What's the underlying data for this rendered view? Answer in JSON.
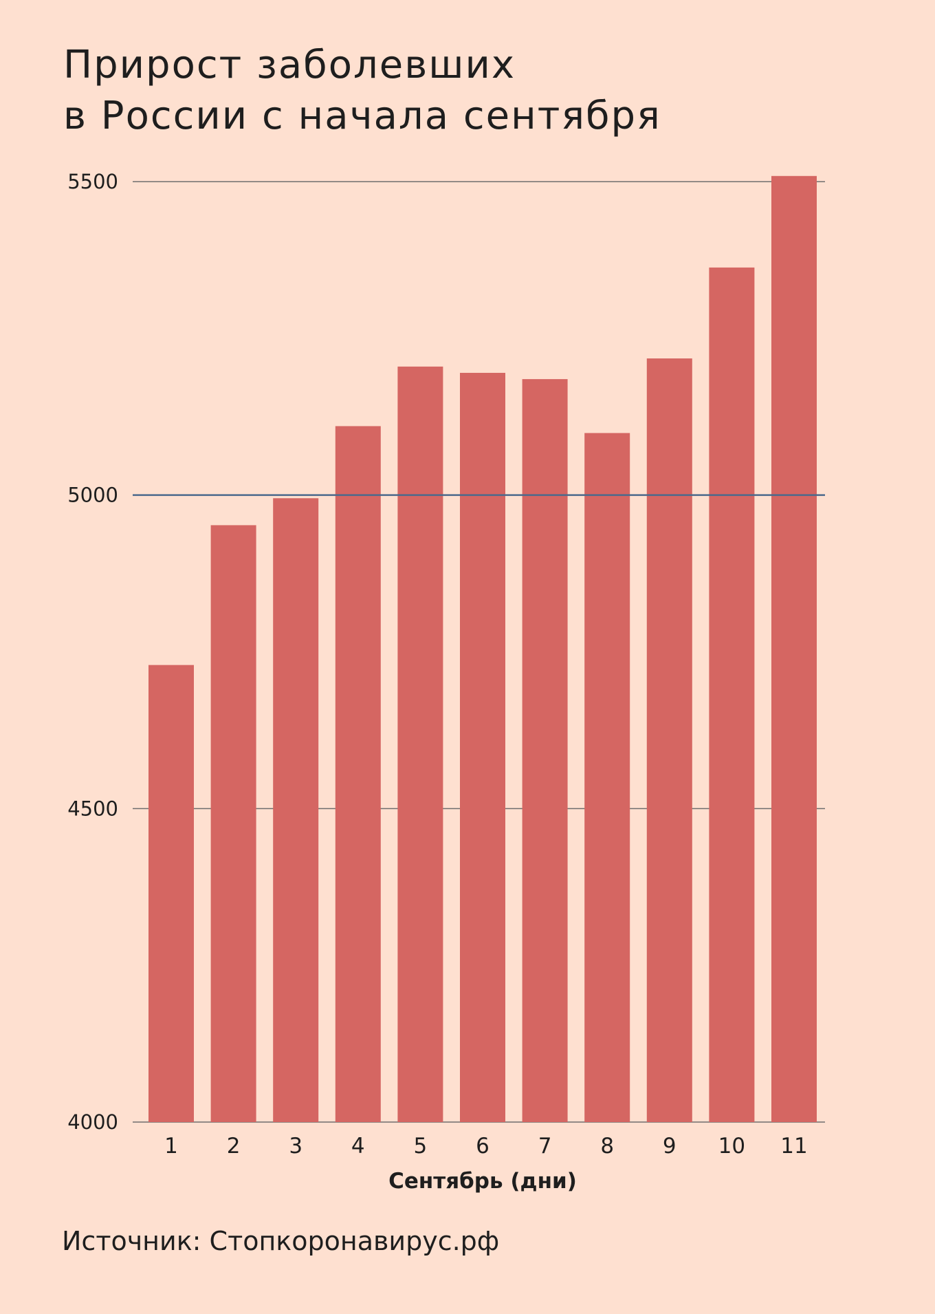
{
  "chart_data": {
    "type": "bar",
    "title_lines": [
      "Прирост заболевших",
      "в России с начала сентября"
    ],
    "xlabel": "Сентябрь (дни)",
    "ylabel": "",
    "categories": [
      "1",
      "2",
      "3",
      "4",
      "5",
      "6",
      "7",
      "8",
      "9",
      "10",
      "11"
    ],
    "values": [
      4729,
      4952,
      4995,
      5110,
      5205,
      5195,
      5185,
      5099,
      5218,
      5363,
      5509
    ],
    "ylim": [
      4000,
      5500
    ],
    "yticks": [
      "5500",
      "5000",
      "4500",
      "4000"
    ],
    "reference_line": 5000,
    "source": "Источник: Стопкоронавирус.рф",
    "bar_color": "#d56662",
    "reference_line_color": "#4b6a8c",
    "background_color": "#fee0d0",
    "grid": true,
    "legend": "none"
  }
}
